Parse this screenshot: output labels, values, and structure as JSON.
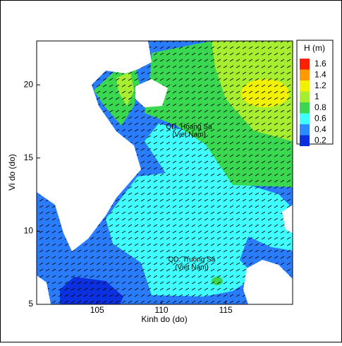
{
  "chart_data": {
    "type": "contour",
    "x_label": "Kinh do (do)",
    "y_label": "Vi do (do)",
    "xlim": [
      100.3,
      120.2
    ],
    "xticks": [
      105,
      110,
      115
    ],
    "ylim": [
      5,
      23
    ],
    "yticks": [
      5,
      10,
      15,
      20
    ],
    "colorbar": {
      "title": "H  (m)",
      "levels": [
        1.6,
        1.4,
        1.2,
        1,
        0.8,
        0.6,
        0.4,
        0.2
      ],
      "colors": [
        "#ff2000",
        "#ff9a00",
        "#f2f200",
        "#a8ee30",
        "#3ad850",
        "#40ffff",
        "#2a8cff",
        "#0a30e0"
      ]
    },
    "annotations": [
      "QD. Hoang Sa",
      "(Viet Nam)",
      "QD. Truong Sa",
      "(Viet Nam)"
    ]
  }
}
